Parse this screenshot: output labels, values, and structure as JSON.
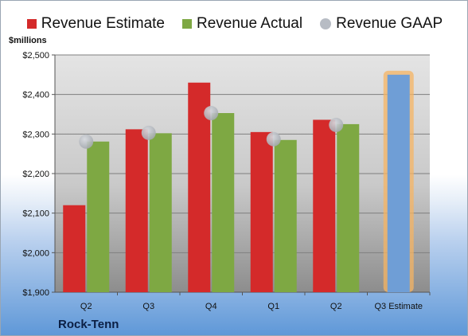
{
  "legend": {
    "estimate": "Revenue Estimate",
    "actual": "Revenue Actual",
    "gaap": "Revenue GAAP"
  },
  "ylabel": "$millions",
  "company": "Rock-Tenn",
  "colors": {
    "estimate": "#d42a2a",
    "actual": "#7ea843",
    "gaap": "#b7bcc4",
    "forecast": "#6f9ed6",
    "forecast_glow": "#f5b463"
  },
  "chart_data": {
    "type": "bar",
    "title": "",
    "xlabel": "",
    "ylabel": "$millions",
    "ylim": [
      1900,
      2500
    ],
    "yticks": [
      1900,
      2000,
      2100,
      2200,
      2300,
      2400,
      2500
    ],
    "ytick_labels": [
      "$1,900",
      "$2,000",
      "$2,100",
      "$2,200",
      "$2,300",
      "$2,400",
      "$2,500"
    ],
    "categories": [
      "Q2",
      "Q3",
      "Q4",
      "Q1",
      "Q2",
      "Q3 Estimate"
    ],
    "grid": true,
    "legend_position": "top",
    "series": [
      {
        "name": "Revenue Estimate",
        "values": [
          2120,
          2312,
          2430,
          2305,
          2336,
          2450
        ]
      },
      {
        "name": "Revenue Actual",
        "values": [
          2281,
          2302,
          2353,
          2285,
          2325,
          null
        ]
      },
      {
        "name": "Revenue GAAP",
        "values": [
          2281,
          2303,
          2353,
          2287,
          2323,
          null
        ]
      }
    ]
  }
}
